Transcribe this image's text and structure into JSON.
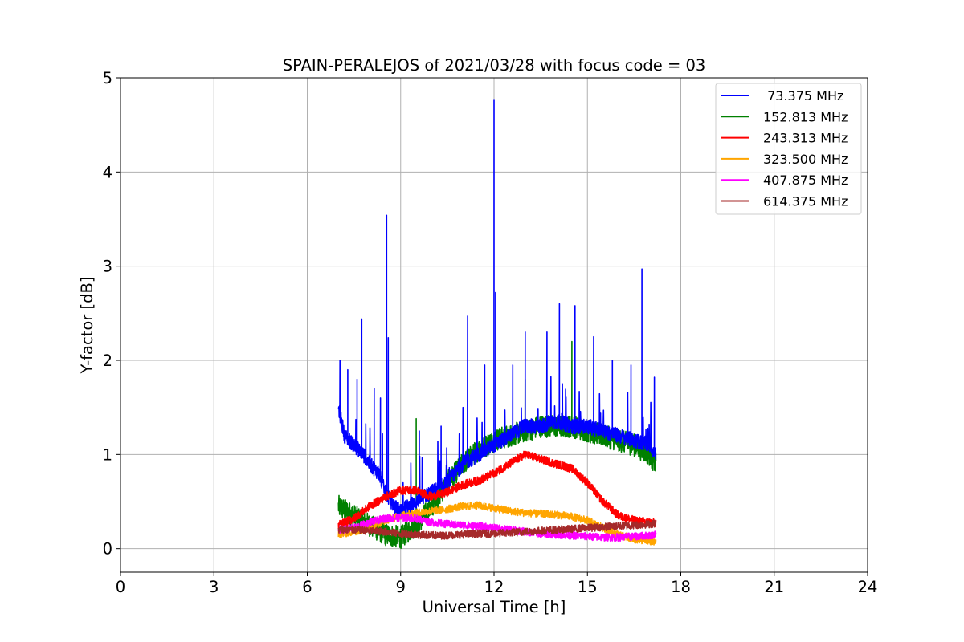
{
  "chart_data": {
    "type": "line",
    "title": "SPAIN-PERALEJOS of 2021/03/28 with focus code = 03",
    "xlabel": "Universal Time [h]",
    "ylabel": "Y-factor [dB]",
    "xlim": [
      0,
      24
    ],
    "ylim": [
      -0.25,
      5
    ],
    "xticks": [
      0,
      3,
      6,
      9,
      12,
      15,
      18,
      21,
      24
    ],
    "yticks": [
      0,
      1,
      2,
      3,
      4,
      5
    ],
    "grid": true,
    "legend_position": "top-right",
    "series": [
      {
        "name": " 73.375 MHz",
        "color": "#0000ff",
        "noise": 0.08,
        "x": [
          7.0,
          7.2,
          7.5,
          7.8,
          8.0,
          8.3,
          8.5,
          8.8,
          9.0,
          9.5,
          10.0,
          10.5,
          11.0,
          11.5,
          12.0,
          12.5,
          13.0,
          13.5,
          14.0,
          14.5,
          15.0,
          15.5,
          16.0,
          16.5,
          17.0,
          17.2
        ],
        "y": [
          1.5,
          1.2,
          1.1,
          1.0,
          0.9,
          0.8,
          0.6,
          0.45,
          0.4,
          0.5,
          0.6,
          0.7,
          0.9,
          1.0,
          1.1,
          1.2,
          1.3,
          1.3,
          1.35,
          1.3,
          1.3,
          1.25,
          1.2,
          1.15,
          1.1,
          1.0
        ],
        "spikes": [
          [
            7.05,
            2.0
          ],
          [
            7.3,
            1.9
          ],
          [
            7.6,
            1.8
          ],
          [
            7.75,
            2.44
          ],
          [
            8.15,
            1.7
          ],
          [
            8.35,
            1.6
          ],
          [
            8.55,
            3.54
          ],
          [
            8.6,
            2.24
          ],
          [
            9.6,
            1.25
          ],
          [
            10.3,
            1.3
          ],
          [
            11.0,
            1.5
          ],
          [
            11.15,
            2.47
          ],
          [
            11.7,
            1.95
          ],
          [
            12.0,
            4.77
          ],
          [
            12.05,
            2.72
          ],
          [
            12.6,
            1.95
          ],
          [
            13.0,
            2.3
          ],
          [
            13.7,
            2.3
          ],
          [
            14.1,
            2.6
          ],
          [
            14.6,
            2.58
          ],
          [
            15.2,
            2.25
          ],
          [
            15.8,
            2.0
          ],
          [
            16.4,
            1.95
          ],
          [
            16.75,
            2.97
          ],
          [
            17.15,
            1.82
          ]
        ]
      },
      {
        "name": "152.813 MHz",
        "color": "#008000",
        "noise": 0.12,
        "x": [
          7.0,
          7.5,
          8.0,
          8.5,
          9.0,
          9.5,
          10.0,
          10.5,
          11.0,
          11.5,
          12.0,
          12.5,
          13.0,
          13.5,
          14.0,
          14.5,
          15.0,
          15.5,
          16.0,
          16.5,
          17.0,
          17.2
        ],
        "y": [
          0.45,
          0.35,
          0.25,
          0.15,
          0.12,
          0.25,
          0.45,
          0.7,
          0.9,
          1.05,
          1.15,
          1.2,
          1.25,
          1.3,
          1.3,
          1.3,
          1.25,
          1.2,
          1.15,
          1.1,
          1.0,
          0.9
        ],
        "spikes": [
          [
            9.5,
            1.38
          ],
          [
            14.5,
            2.2
          ],
          [
            13.0,
            1.8
          ]
        ]
      },
      {
        "name": "243.313 MHz",
        "color": "#ff0000",
        "noise": 0.045,
        "x": [
          7.0,
          7.5,
          8.0,
          8.5,
          9.0,
          9.5,
          10.0,
          10.5,
          11.0,
          11.5,
          12.0,
          12.5,
          13.0,
          13.5,
          14.0,
          14.5,
          15.0,
          15.5,
          16.0,
          16.5,
          17.0,
          17.2
        ],
        "y": [
          0.25,
          0.32,
          0.45,
          0.55,
          0.62,
          0.62,
          0.55,
          0.6,
          0.68,
          0.72,
          0.8,
          0.9,
          1.0,
          0.95,
          0.9,
          0.85,
          0.7,
          0.5,
          0.35,
          0.3,
          0.28,
          0.27
        ],
        "spikes": []
      },
      {
        "name": "323.500 MHz",
        "color": "#ffa500",
        "noise": 0.04,
        "x": [
          7.0,
          7.5,
          8.0,
          8.5,
          9.0,
          9.5,
          10.0,
          10.5,
          11.0,
          11.5,
          12.0,
          12.5,
          13.0,
          13.5,
          14.0,
          14.5,
          15.0,
          15.5,
          16.0,
          16.5,
          17.0,
          17.2
        ],
        "y": [
          0.15,
          0.18,
          0.22,
          0.3,
          0.35,
          0.38,
          0.4,
          0.42,
          0.45,
          0.46,
          0.43,
          0.4,
          0.38,
          0.37,
          0.36,
          0.34,
          0.3,
          0.22,
          0.15,
          0.1,
          0.08,
          0.06
        ],
        "spikes": []
      },
      {
        "name": "407.875 MHz",
        "color": "#ff00ff",
        "noise": 0.04,
        "x": [
          7.0,
          7.5,
          8.0,
          8.5,
          9.0,
          9.5,
          10.0,
          10.5,
          11.0,
          11.5,
          12.0,
          12.5,
          13.0,
          13.5,
          14.0,
          14.5,
          15.0,
          15.5,
          16.0,
          16.5,
          17.0,
          17.2
        ],
        "y": [
          0.2,
          0.22,
          0.28,
          0.32,
          0.33,
          0.32,
          0.28,
          0.26,
          0.25,
          0.24,
          0.22,
          0.2,
          0.18,
          0.16,
          0.15,
          0.14,
          0.13,
          0.12,
          0.12,
          0.13,
          0.14,
          0.15
        ],
        "spikes": []
      },
      {
        "name": "614.375 MHz",
        "color": "#a52a2a",
        "noise": 0.04,
        "x": [
          7.0,
          7.5,
          8.0,
          8.5,
          9.0,
          9.5,
          10.0,
          10.5,
          11.0,
          11.5,
          12.0,
          12.5,
          13.0,
          13.5,
          14.0,
          14.5,
          15.0,
          15.5,
          16.0,
          16.5,
          17.0,
          17.2
        ],
        "y": [
          0.2,
          0.2,
          0.19,
          0.18,
          0.16,
          0.15,
          0.14,
          0.14,
          0.15,
          0.16,
          0.16,
          0.17,
          0.18,
          0.19,
          0.2,
          0.21,
          0.22,
          0.23,
          0.24,
          0.25,
          0.26,
          0.27
        ],
        "spikes": []
      }
    ]
  }
}
